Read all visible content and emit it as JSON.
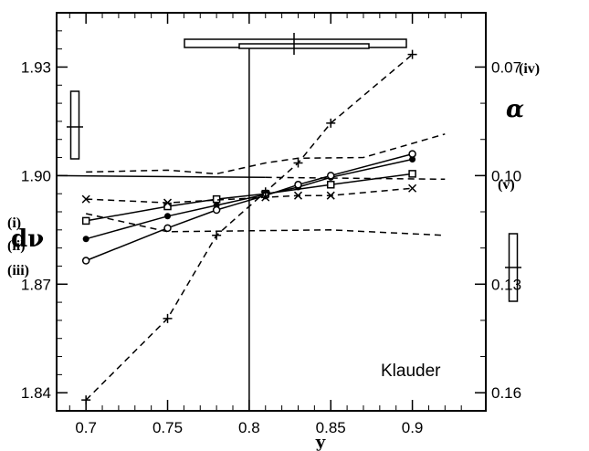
{
  "chart_data": {
    "type": "line",
    "xlabel": "y",
    "ylabel_left": "dν",
    "ylabel_right": "α",
    "xlim": [
      0.682,
      0.945
    ],
    "ylim_left": [
      1.835,
      1.945
    ],
    "xticks": [
      0.7,
      0.75,
      0.8,
      0.85,
      0.9
    ],
    "xtick_labels": [
      "0.7",
      "0.75",
      "0.8",
      "0.85",
      "0.9"
    ],
    "yticks_left": [
      1.84,
      1.87,
      1.9,
      1.93
    ],
    "ytick_left_labels": [
      "1.84",
      "1.87",
      "1.90",
      "1.93"
    ],
    "yticks_right": [
      0.07,
      0.1,
      0.13,
      0.16
    ],
    "ytick_right_labels": [
      "0.07",
      "0.10",
      "0.13",
      "0.16"
    ],
    "annotation": "Klauder",
    "series": [
      {
        "name": "(i)",
        "marker": "square",
        "style": "solid",
        "x": [
          0.7,
          0.75,
          0.78,
          0.81,
          0.85,
          0.9
        ],
        "y": [
          1.8875,
          1.8915,
          1.8935,
          1.895,
          1.8975,
          1.9005
        ]
      },
      {
        "name": "(ii)",
        "marker": "dot",
        "style": "solid",
        "x": [
          0.7,
          0.75,
          0.78,
          0.81,
          0.83,
          0.85,
          0.9
        ],
        "y": [
          1.8825,
          1.8888,
          1.8918,
          1.8948,
          1.8968,
          1.8995,
          1.9045
        ]
      },
      {
        "name": "(iii)",
        "marker": "circle",
        "style": "solid",
        "x": [
          0.7,
          0.75,
          0.78,
          0.81,
          0.83,
          0.85,
          0.9
        ],
        "y": [
          1.8765,
          1.8855,
          1.8905,
          1.8945,
          1.8975,
          1.9,
          1.906
        ]
      },
      {
        "name": "(iv)",
        "marker": "plus",
        "style": "dashed",
        "x": [
          0.7,
          0.75,
          0.78,
          0.81,
          0.83,
          0.85,
          0.9
        ],
        "y": [
          1.838,
          1.8605,
          1.8835,
          1.8955,
          1.9035,
          1.9145,
          1.9335
        ]
      },
      {
        "name": "(v)",
        "marker": "cross",
        "style": "dashed",
        "x": [
          0.7,
          0.75,
          0.81,
          0.83,
          0.85,
          0.9
        ],
        "y": [
          1.8935,
          1.8925,
          1.894,
          1.8945,
          1.8945,
          1.8965
        ]
      }
    ]
  }
}
